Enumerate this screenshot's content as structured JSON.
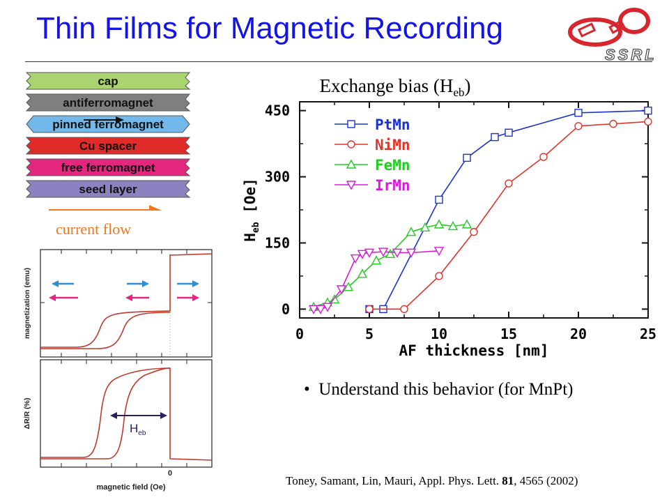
{
  "slide": {
    "title": "Thin Films for Magnetic Recording",
    "logo_text": "SSRL",
    "bullet": "Understand this behavior (for MnPt)",
    "citation": {
      "authors": "Toney, Samant, Lin, Mauri, Appl. Phys. Lett.",
      "volume": "81",
      "rest": ", 4565 (2002)"
    }
  },
  "stack": {
    "layers": [
      {
        "label": "cap",
        "color": "#a9d46f"
      },
      {
        "label": "antiferromagnet",
        "color": "#7f7f7f"
      },
      {
        "label": "pinned ferromagnet",
        "color": "#72b8ea"
      },
      {
        "label": "Cu spacer",
        "color": "#e02b28"
      },
      {
        "label": "free ferromagnet",
        "color": "#e3267e"
      },
      {
        "label": "seed layer",
        "color": "#8b82bf"
      }
    ],
    "current_flow_label": "current flow",
    "arrow_color": "#f07820"
  },
  "hysteresis": {
    "top_ylabel": "magnetization (emu)",
    "bottom_ylabel": "ΔR/R (%)",
    "xlabel": "magnetic field (Oe)",
    "zero_tick": "0",
    "heb_label": "H",
    "heb_sub": "eb"
  },
  "chart_data": {
    "type": "line",
    "title": "Exchange bias (H",
    "title_sub": "eb",
    "title_tail": ")",
    "xlabel": "AF thickness [nm]",
    "ylabel": "H",
    "ylabel_sub": "eb",
    "ylabel_tail": " [Oe]",
    "xlim": [
      0,
      25
    ],
    "ylim": [
      -20,
      470
    ],
    "xticks": [
      0,
      5,
      10,
      15,
      20,
      25
    ],
    "yticks": [
      0,
      150,
      300,
      450
    ],
    "legend_position": "top-left",
    "series": [
      {
        "name": "PtMn",
        "color": "#1a33cc",
        "marker": "square",
        "points": [
          [
            5,
            0
          ],
          [
            6,
            0
          ],
          [
            10,
            248
          ],
          [
            12,
            343
          ],
          [
            14,
            390
          ],
          [
            15,
            400
          ],
          [
            20,
            445
          ],
          [
            25,
            450
          ]
        ]
      },
      {
        "name": "NiMn",
        "color": "#e0332a",
        "marker": "circle",
        "points": [
          [
            5,
            0
          ],
          [
            7.5,
            0
          ],
          [
            10,
            75
          ],
          [
            12.5,
            175
          ],
          [
            15,
            285
          ],
          [
            17.5,
            345
          ],
          [
            20,
            415
          ],
          [
            22.5,
            420
          ],
          [
            25,
            425
          ]
        ]
      },
      {
        "name": "FeMn",
        "color": "#22cc22",
        "marker": "triangle-up",
        "points": [
          [
            1,
            5
          ],
          [
            2,
            15
          ],
          [
            2.5,
            22
          ],
          [
            3.5,
            50
          ],
          [
            4.5,
            80
          ],
          [
            5.5,
            110
          ],
          [
            6.5,
            125
          ],
          [
            8,
            175
          ],
          [
            9,
            185
          ],
          [
            10,
            192
          ],
          [
            11,
            188
          ],
          [
            12,
            192
          ]
        ]
      },
      {
        "name": "IrMn",
        "color": "#d81ad8",
        "marker": "triangle-down",
        "points": [
          [
            1,
            0
          ],
          [
            1.5,
            0
          ],
          [
            2,
            5
          ],
          [
            3,
            45
          ],
          [
            4,
            115
          ],
          [
            4.5,
            125
          ],
          [
            5,
            128
          ],
          [
            6,
            130
          ],
          [
            7,
            128
          ],
          [
            8,
            128
          ],
          [
            10,
            132
          ]
        ]
      }
    ]
  }
}
